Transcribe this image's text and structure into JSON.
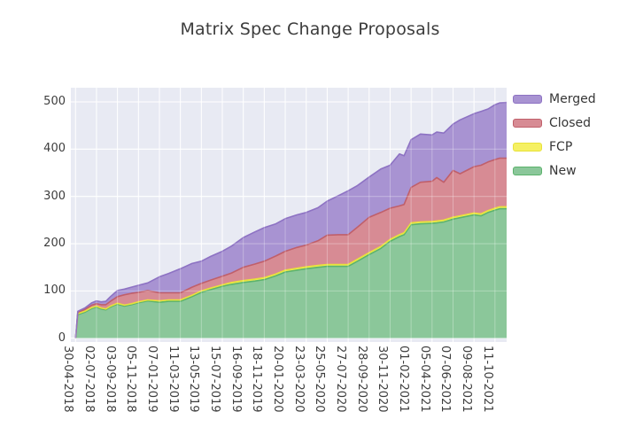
{
  "title": "Matrix Spec Change Proposals",
  "colors": {
    "plot_background": "#e8eaf3",
    "grid": "#ffffff",
    "text": "#3d3d3d"
  },
  "legend": {
    "items": [
      {
        "label": "Merged",
        "fill": "#a893d2",
        "line": "#8d72c3"
      },
      {
        "label": "Closed",
        "fill": "#d78b94",
        "line": "#c05f6a"
      },
      {
        "label": "FCP",
        "fill": "#f5f063",
        "line": "#e8e23a"
      },
      {
        "label": "New",
        "fill": "#8bc79a",
        "line": "#5cb36c"
      }
    ]
  },
  "chart_data": {
    "type": "area",
    "stacked": true,
    "title": "Matrix Spec Change Proposals",
    "xlabel": "",
    "ylabel": "",
    "grid": true,
    "legend_position": "outside-right",
    "ylim": [
      -8,
      530
    ],
    "yticks": [
      0,
      100,
      200,
      300,
      400,
      500
    ],
    "xtick_labels": [
      "30-04-2018",
      "02-07-2018",
      "03-09-2018",
      "05-11-2018",
      "07-01-2019",
      "11-03-2019",
      "13-05-2019",
      "15-07-2019",
      "16-09-2019",
      "18-11-2019",
      "20-01-2020",
      "23-03-2020",
      "25-05-2020",
      "27-07-2020",
      "28-09-2020",
      "30-11-2020",
      "01-02-2021",
      "05-04-2021",
      "07-06-2021",
      "09-08-2021",
      "11-10-2021"
    ],
    "xtick_weeks": [
      0,
      9,
      18,
      27,
      36,
      45,
      54,
      63,
      72,
      81,
      90,
      99,
      108,
      117,
      126,
      135,
      144,
      153,
      162,
      171,
      180
    ],
    "week_domain": [
      -2,
      185
    ],
    "x_weeks": [
      0,
      1,
      4,
      7,
      9,
      11,
      13,
      15,
      18,
      21,
      24,
      27,
      31,
      36,
      40,
      45,
      50,
      54,
      58,
      63,
      67,
      72,
      77,
      81,
      86,
      90,
      95,
      99,
      104,
      108,
      113,
      117,
      121,
      126,
      131,
      135,
      139,
      141,
      144,
      148,
      153,
      155,
      158,
      162,
      165,
      171,
      174,
      177,
      180,
      182,
      185
    ],
    "series": [
      {
        "name": "New",
        "fill": "#8bc79a",
        "line": "#5cb36c",
        "values": [
          0,
          50,
          55,
          63,
          66,
          62,
          60,
          66,
          72,
          68,
          71,
          75,
          79,
          76,
          78,
          78,
          88,
          97,
          103,
          110,
          114,
          118,
          121,
          124,
          132,
          140,
          144,
          147,
          150,
          152,
          152,
          152,
          163,
          177,
          190,
          205,
          215,
          219,
          240,
          242,
          243,
          244,
          246,
          252,
          255,
          261,
          259,
          266,
          271,
          274,
          274
        ]
      },
      {
        "name": "FCP",
        "fill": "#f5f063",
        "line": "#e8e23a",
        "values": [
          0,
          2,
          2,
          2,
          2,
          2,
          2,
          2,
          2,
          2,
          2,
          2,
          2,
          3,
          3,
          3,
          3,
          3,
          3,
          3,
          4,
          4,
          4,
          4,
          4,
          4,
          4,
          4,
          4,
          4,
          4,
          4,
          4,
          4,
          4,
          4,
          4,
          4,
          4,
          4,
          4,
          4,
          4,
          4,
          4,
          4,
          4,
          4,
          4,
          4,
          4
        ]
      },
      {
        "name": "Closed",
        "fill": "#d78b94",
        "line": "#c05f6a",
        "values": [
          0,
          3,
          4,
          5,
          5,
          7,
          9,
          10,
          14,
          22,
          22,
          20,
          20,
          17,
          15,
          15,
          17,
          16,
          17,
          18,
          20,
          28,
          32,
          35,
          38,
          40,
          44,
          46,
          52,
          62,
          63,
          63,
          68,
          75,
          72,
          66,
          61,
          60,
          75,
          84,
          85,
          92,
          80,
          99,
          89,
          98,
          103,
          103,
          103,
          103,
          103
        ]
      },
      {
        "name": "Merged",
        "fill": "#a893d2",
        "line": "#8d72c3",
        "values": [
          0,
          2,
          3,
          5,
          6,
          6,
          7,
          10,
          13,
          12,
          13,
          15,
          16,
          34,
          41,
          51,
          50,
          47,
          50,
          53,
          57,
          63,
          68,
          71,
          68,
          69,
          69,
          69,
          70,
          72,
          83,
          93,
          88,
          85,
          92,
          91,
          110,
          103,
          101,
          102,
          98,
          96,
          104,
          98,
          114,
          112,
          114,
          112,
          116,
          117,
          118
        ]
      }
    ],
    "legend_order": [
      "Merged",
      "Closed",
      "FCP",
      "New"
    ]
  }
}
